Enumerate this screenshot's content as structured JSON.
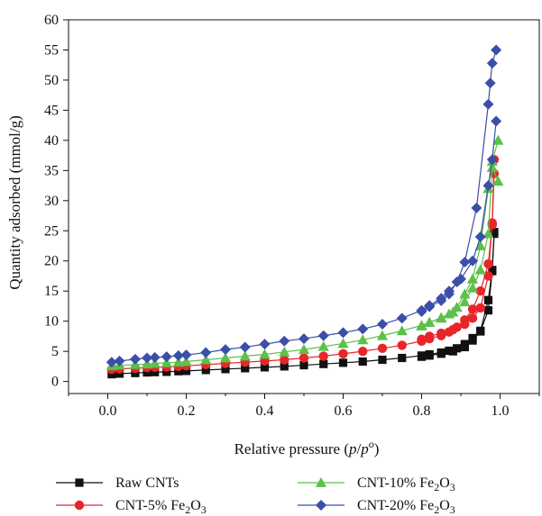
{
  "chart_data": {
    "type": "scatter",
    "xlabel": "Relative pressure (p/p°)",
    "ylabel": "Quantity adsorbed (mmol/g)",
    "xlim": [
      -0.1,
      1.1
    ],
    "ylim": [
      -2,
      60
    ],
    "x_ticks": [
      "0.0",
      "0.2",
      "0.4",
      "0.6",
      "0.8",
      "1.0"
    ],
    "y_ticks": [
      "0",
      "5",
      "10",
      "15",
      "20",
      "25",
      "30",
      "35",
      "40",
      "45",
      "50",
      "55",
      "60"
    ],
    "grid": false,
    "legend_position": "bottom",
    "series": [
      {
        "name": "Raw CNTs",
        "color": "#111111",
        "marker": "square",
        "adsorption": [
          [
            0.01,
            1.2
          ],
          [
            0.03,
            1.3
          ],
          [
            0.07,
            1.4
          ],
          [
            0.1,
            1.5
          ],
          [
            0.12,
            1.55
          ],
          [
            0.15,
            1.6
          ],
          [
            0.18,
            1.7
          ],
          [
            0.2,
            1.75
          ],
          [
            0.25,
            1.9
          ],
          [
            0.3,
            2.05
          ],
          [
            0.35,
            2.2
          ],
          [
            0.4,
            2.35
          ],
          [
            0.45,
            2.5
          ],
          [
            0.5,
            2.7
          ],
          [
            0.55,
            2.9
          ],
          [
            0.6,
            3.1
          ],
          [
            0.65,
            3.3
          ],
          [
            0.7,
            3.6
          ],
          [
            0.75,
            3.9
          ],
          [
            0.8,
            4.3
          ],
          [
            0.82,
            4.5
          ],
          [
            0.85,
            4.8
          ],
          [
            0.87,
            5.1
          ],
          [
            0.89,
            5.5
          ],
          [
            0.91,
            6.2
          ],
          [
            0.93,
            7.2
          ],
          [
            0.95,
            8.4
          ],
          [
            0.97,
            13.5
          ],
          [
            0.98,
            18.5
          ],
          [
            0.985,
            24.5
          ]
        ],
        "desorption": [
          [
            0.985,
            24.8
          ],
          [
            0.98,
            18.3
          ],
          [
            0.97,
            11.8
          ],
          [
            0.95,
            8.3
          ],
          [
            0.93,
            6.8
          ],
          [
            0.91,
            5.7
          ],
          [
            0.88,
            5.0
          ],
          [
            0.85,
            4.6
          ],
          [
            0.82,
            4.3
          ],
          [
            0.8,
            4.1
          ]
        ]
      },
      {
        "name": "CNT-5% Fe2O3",
        "color": "#e8262a",
        "marker": "circle",
        "adsorption": [
          [
            0.01,
            2.0
          ],
          [
            0.03,
            2.1
          ],
          [
            0.07,
            2.2
          ],
          [
            0.1,
            2.3
          ],
          [
            0.12,
            2.35
          ],
          [
            0.15,
            2.4
          ],
          [
            0.18,
            2.5
          ],
          [
            0.2,
            2.6
          ],
          [
            0.25,
            2.8
          ],
          [
            0.3,
            3.0
          ],
          [
            0.35,
            3.2
          ],
          [
            0.4,
            3.4
          ],
          [
            0.45,
            3.6
          ],
          [
            0.5,
            3.9
          ],
          [
            0.55,
            4.2
          ],
          [
            0.6,
            4.6
          ],
          [
            0.65,
            5.0
          ],
          [
            0.7,
            5.5
          ],
          [
            0.75,
            6.0
          ],
          [
            0.8,
            6.7
          ],
          [
            0.82,
            7.1
          ],
          [
            0.85,
            7.6
          ],
          [
            0.87,
            8.2
          ],
          [
            0.89,
            9.0
          ],
          [
            0.91,
            10.2
          ],
          [
            0.93,
            12.0
          ],
          [
            0.95,
            15.0
          ],
          [
            0.97,
            19.5
          ],
          [
            0.98,
            26.0
          ],
          [
            0.985,
            34.5
          ]
        ],
        "desorption": [
          [
            0.985,
            36.8
          ],
          [
            0.98,
            26.3
          ],
          [
            0.97,
            17.5
          ],
          [
            0.95,
            12.2
          ],
          [
            0.93,
            10.5
          ],
          [
            0.91,
            9.5
          ],
          [
            0.88,
            8.6
          ],
          [
            0.85,
            8.0
          ],
          [
            0.82,
            7.5
          ],
          [
            0.8,
            7.0
          ]
        ]
      },
      {
        "name": "CNT-10% Fe2O3",
        "color": "#5cc04a",
        "marker": "triangle",
        "adsorption": [
          [
            0.01,
            2.6
          ],
          [
            0.03,
            2.7
          ],
          [
            0.07,
            2.8
          ],
          [
            0.1,
            2.9
          ],
          [
            0.12,
            3.0
          ],
          [
            0.15,
            3.1
          ],
          [
            0.18,
            3.2
          ],
          [
            0.2,
            3.3
          ],
          [
            0.25,
            3.6
          ],
          [
            0.3,
            3.9
          ],
          [
            0.35,
            4.2
          ],
          [
            0.4,
            4.5
          ],
          [
            0.45,
            4.9
          ],
          [
            0.5,
            5.3
          ],
          [
            0.55,
            5.8
          ],
          [
            0.6,
            6.3
          ],
          [
            0.65,
            6.9
          ],
          [
            0.7,
            7.6
          ],
          [
            0.75,
            8.4
          ],
          [
            0.8,
            9.3
          ],
          [
            0.82,
            9.8
          ],
          [
            0.85,
            10.5
          ],
          [
            0.87,
            11.2
          ],
          [
            0.89,
            12.3
          ],
          [
            0.91,
            14.5
          ],
          [
            0.93,
            17.0
          ],
          [
            0.95,
            22.5
          ],
          [
            0.97,
            32.0
          ],
          [
            0.98,
            36.5
          ],
          [
            0.995,
            40.0
          ]
        ],
        "desorption": [
          [
            0.995,
            33.2
          ],
          [
            0.98,
            35.5
          ],
          [
            0.97,
            24.5
          ],
          [
            0.95,
            18.5
          ],
          [
            0.93,
            15.5
          ],
          [
            0.91,
            13.2
          ],
          [
            0.88,
            11.5
          ],
          [
            0.85,
            10.6
          ],
          [
            0.82,
            9.8
          ],
          [
            0.8,
            9.2
          ]
        ]
      },
      {
        "name": "CNT-20% Fe2O3",
        "color": "#3b4fa8",
        "marker": "diamond",
        "adsorption": [
          [
            0.01,
            3.2
          ],
          [
            0.03,
            3.4
          ],
          [
            0.07,
            3.7
          ],
          [
            0.1,
            3.9
          ],
          [
            0.12,
            4.0
          ],
          [
            0.15,
            4.1
          ],
          [
            0.18,
            4.3
          ],
          [
            0.2,
            4.4
          ],
          [
            0.25,
            4.8
          ],
          [
            0.3,
            5.3
          ],
          [
            0.35,
            5.7
          ],
          [
            0.4,
            6.2
          ],
          [
            0.45,
            6.7
          ],
          [
            0.5,
            7.1
          ],
          [
            0.55,
            7.6
          ],
          [
            0.6,
            8.1
          ],
          [
            0.65,
            8.7
          ],
          [
            0.7,
            9.5
          ],
          [
            0.75,
            10.5
          ],
          [
            0.8,
            11.8
          ],
          [
            0.82,
            12.4
          ],
          [
            0.85,
            13.4
          ],
          [
            0.87,
            14.5
          ],
          [
            0.89,
            16.5
          ],
          [
            0.91,
            19.8
          ],
          [
            0.94,
            28.8
          ],
          [
            0.97,
            46.0
          ],
          [
            0.975,
            49.5
          ],
          [
            0.98,
            52.8
          ],
          [
            0.99,
            55.0
          ]
        ],
        "desorption": [
          [
            0.99,
            43.2
          ],
          [
            0.98,
            36.8
          ],
          [
            0.97,
            32.5
          ],
          [
            0.95,
            24.0
          ],
          [
            0.93,
            20.0
          ],
          [
            0.9,
            17.0
          ],
          [
            0.87,
            15.0
          ],
          [
            0.85,
            13.8
          ],
          [
            0.82,
            12.6
          ],
          [
            0.8,
            11.6
          ]
        ]
      }
    ]
  },
  "legend": [
    {
      "label": "Raw CNTs",
      "sub": "",
      "suffix": ""
    },
    {
      "label": "CNT-5% Fe",
      "sub": "2",
      "suffix": "O",
      "sub2": "3"
    },
    {
      "label": "CNT-10% Fe",
      "sub": "2",
      "suffix": "O",
      "sub2": "3"
    },
    {
      "label": "CNT-20% Fe",
      "sub": "2",
      "suffix": "O",
      "sub2": "3"
    }
  ],
  "axis_title_parts": {
    "x_prefix": "Relative pressure (",
    "x_p1": "p",
    "x_slash": "/",
    "x_p2": "p",
    "x_sup": "o",
    "x_suffix": ")",
    "y_text": "Quantity adsorbed (mmol/g)"
  }
}
